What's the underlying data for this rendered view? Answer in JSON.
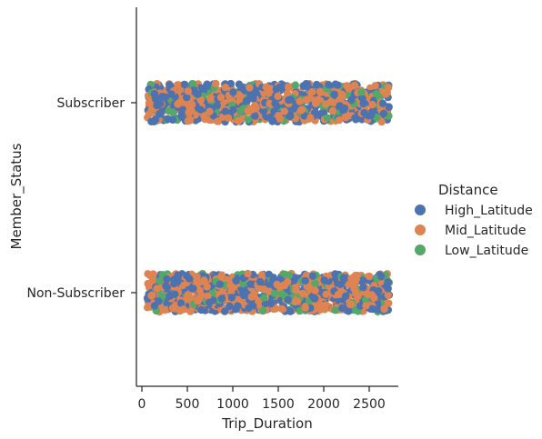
{
  "chart_data": {
    "type": "scatter",
    "subtype": "strip",
    "xlabel": "Trip_Duration",
    "ylabel": "Member_Status",
    "xlim": [
      -60,
      2820
    ],
    "x_ticks": [
      0,
      500,
      1000,
      1500,
      2000,
      2500
    ],
    "categories": [
      "Subscriber",
      "Non-Subscriber"
    ],
    "category_axis": "y",
    "x_range": [
      60,
      2720
    ],
    "points_per_category": 1000,
    "legend": {
      "title": "Distance",
      "placement": "right",
      "entries": [
        "High_Latitude",
        "Mid_Latitude",
        "Low_Latitude"
      ]
    },
    "series": [
      {
        "name": "High_Latitude",
        "color": "#4c72b0",
        "share": 0.45
      },
      {
        "name": "Mid_Latitude",
        "color": "#dd8452",
        "share": 0.45
      },
      {
        "name": "Low_Latitude",
        "color": "#55a868",
        "share": 0.1
      }
    ],
    "grid": false,
    "spines": [
      "left",
      "bottom"
    ]
  }
}
